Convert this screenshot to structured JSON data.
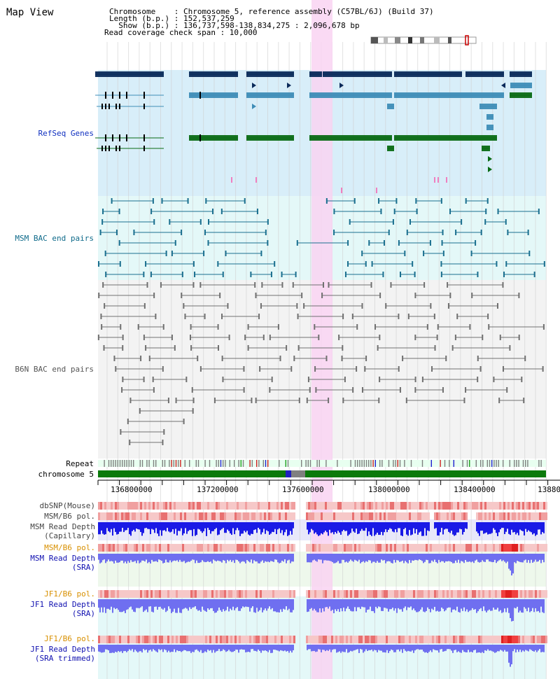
{
  "view": {
    "title": "Map View",
    "info_lines": [
      "Chromosome    : Chromosome 5, reference assembly (C57BL/6J) (Build 37)",
      "Length (b.p.) : 152,537,259",
      "  Show (b.p.) : 136,737,598-138,834,275 : 2,096,678 bp",
      "Read coverage check span : 10,000"
    ]
  },
  "tracks": {
    "refseq": "RefSeq Genes",
    "msm_bac": "MSM BAC end pairs",
    "b6n_bac": "B6N BAC end pairs",
    "repeat": "Repeat",
    "chromosome": "chromosome 5",
    "dbsnp": "dbSNP(Mouse)",
    "msm_b6_pol_1": "MSM/B6 pol.",
    "msm_depth_cap": "MSM Read Depth\n(Capillary)",
    "msm_b6_pol_2": "MSM/B6 pol.",
    "msm_depth_sra": "MSM Read Depth\n(SRA)",
    "jf1_b6_pol_1": "JF1/B6 pol.",
    "jf1_depth_sra": "JF1 Read Depth\n(SRA)",
    "jf1_b6_pol_2": "JF1/B6 pol.",
    "jf1_depth_trim": "JF1 Read Depth\n(SRA trimmed)"
  },
  "axis": {
    "ticks": [
      "136800000",
      "137200000",
      "137600000",
      "138000000",
      "138400000",
      "13880"
    ]
  },
  "colors": {
    "refseq_dark": "#0a2a5a",
    "refseq_mid": "#3f8db7",
    "refseq_green": "#0a6a14",
    "msm_bac": "#1a6f8f",
    "b6n_bac": "#707070",
    "highlight": "#f9d4f2",
    "chromosome": "#0b7a0b",
    "depth_blue": "#1a1ae6",
    "depth_light": "#6f6ff0"
  },
  "ideogram": {
    "marker_color": "#cc0000"
  }
}
